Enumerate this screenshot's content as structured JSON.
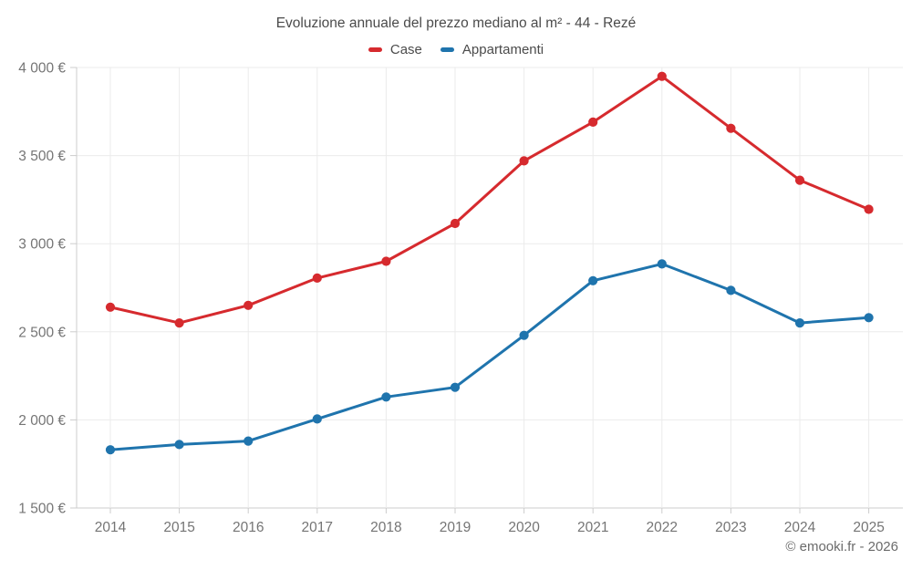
{
  "header": {
    "title": "Evoluzione annuale del prezzo mediano al m² - 44 - Rezé"
  },
  "footer": {
    "copyright": "© emooki.fr - 2026"
  },
  "chart_data": {
    "type": "line",
    "title": "Evoluzione annuale del prezzo mediano al m² - 44 - Rezé",
    "x": [
      2014,
      2015,
      2016,
      2017,
      2018,
      2019,
      2020,
      2021,
      2022,
      2023,
      2024,
      2025
    ],
    "series": [
      {
        "name": "Case",
        "color": "#d62a2e",
        "values": [
          2640,
          2550,
          2650,
          2805,
          2900,
          3115,
          3470,
          3690,
          3950,
          3655,
          3360,
          3195
        ]
      },
      {
        "name": "Appartamenti",
        "color": "#1f74ad",
        "values": [
          1830,
          1860,
          1880,
          2005,
          2130,
          2185,
          2480,
          2790,
          2885,
          2735,
          2550,
          2580
        ]
      }
    ],
    "ylim": [
      1500,
      4000
    ],
    "y_ticks": [
      1500,
      2000,
      2500,
      3000,
      3500,
      4000
    ],
    "y_tick_labels": [
      "1 500 €",
      "2 000 €",
      "2 500 €",
      "3 000 €",
      "3 500 €",
      "4 000 €"
    ],
    "currency": "€",
    "grid": true,
    "legend_position": "top-center"
  },
  "style": {
    "background": "#ffffff",
    "grid_color": "#ebebeb",
    "axis_color": "#cccccc",
    "tick_label_color": "#757575",
    "title_color": "#4b4b4b",
    "footer_color": "#6b6b6b"
  }
}
